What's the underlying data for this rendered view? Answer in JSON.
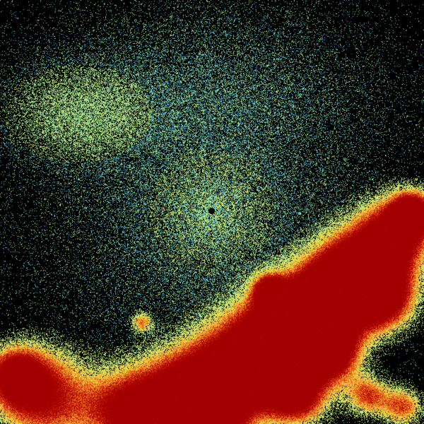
{
  "image": {
    "kind": "radar-reflectivity-sweep",
    "background": "#000000",
    "colormap": [
      "#1a4a9a",
      "#2f86c0",
      "#52c0c0",
      "#b8e47a",
      "#f0e448",
      "#f2a030",
      "#e04a10",
      "#b80c00",
      "#a00000"
    ],
    "radar_site_marker": "black-dot"
  }
}
